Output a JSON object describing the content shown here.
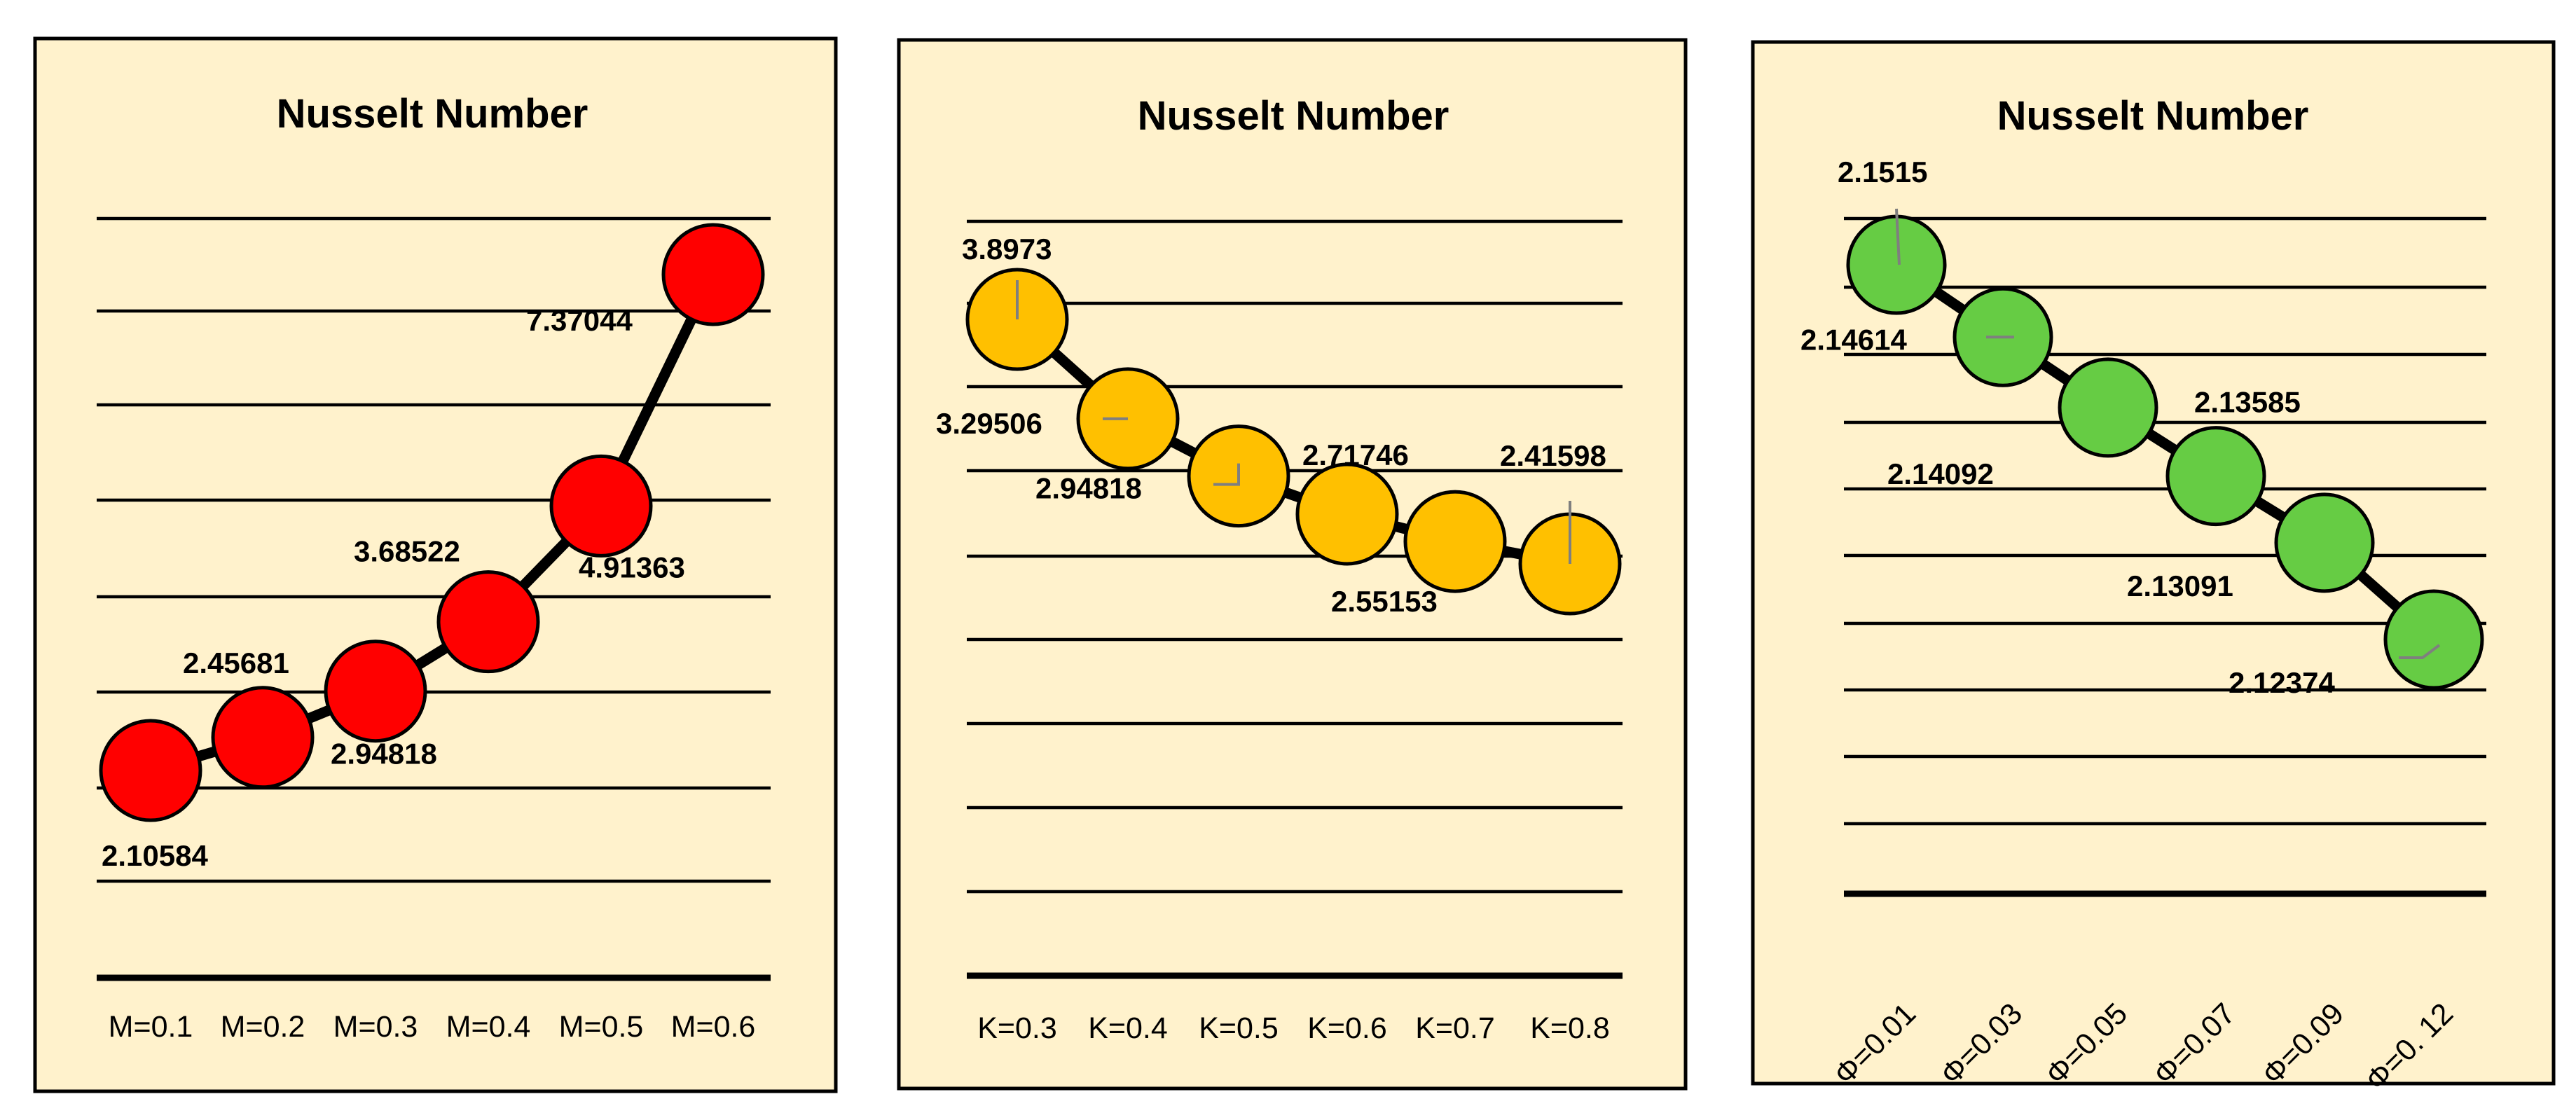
{
  "chart_data": [
    {
      "type": "line",
      "title": "Nusselt Number",
      "categories": [
        "M=0.1",
        "M=0.2",
        "M=0.3",
        "M=0.4",
        "M=0.5",
        "M=0.6"
      ],
      "series": [
        {
          "values": [
            2.10584,
            2.45681,
            2.94818,
            3.68522,
            4.91363,
            7.37044
          ],
          "labels": [
            "2.10584",
            "2.45681",
            "2.94818",
            "3.68522",
            "4.91363",
            "7.37044"
          ]
        }
      ],
      "marker_color": "#ff0000",
      "grid": true
    },
    {
      "type": "line",
      "title": "Nusselt Number",
      "categories": [
        "K=0.3",
        "K=0.4",
        "K=0.5",
        "K=0.6",
        "K=0.7",
        "K=0.8"
      ],
      "series": [
        {
          "values": [
            3.8973,
            3.29506,
            2.94818,
            2.71746,
            2.55153,
            2.41598
          ],
          "labels": [
            "3.8973",
            "3.29506",
            "2.94818",
            "2.71746",
            "2.55153",
            "2.41598"
          ]
        }
      ],
      "marker_color": "#ffc000",
      "grid": true
    },
    {
      "type": "line",
      "title": "Nusselt Number",
      "categories": [
        "Φ=0.01",
        "Φ=0.03",
        "Φ=0.05",
        "Φ=0.07",
        "Φ=0.09",
        "Φ=0. 12"
      ],
      "series": [
        {
          "values": [
            2.1515,
            2.14614,
            2.14092,
            2.13585,
            2.13091,
            2.12374
          ],
          "labels": [
            "2.1515",
            "2.14614",
            "2.14092",
            "2.13585",
            "2.13091",
            "2.12374"
          ]
        }
      ],
      "marker_color": "#66cc44",
      "grid": true
    }
  ]
}
